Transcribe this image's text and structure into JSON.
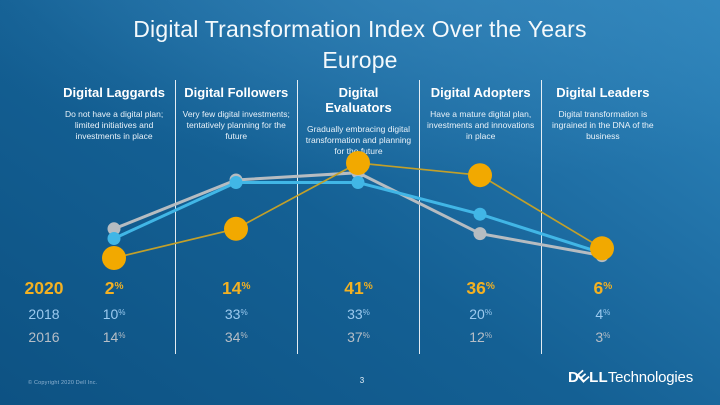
{
  "title": {
    "line1": "Digital Transformation Index Over the Years",
    "line2": "Europe"
  },
  "columns": [
    {
      "header": "Digital Laggards",
      "description": "Do not have a digital plan; limited initiatives and investments in place"
    },
    {
      "header": "Digital Followers",
      "description": "Very few digital investments; tentatively planning for the future"
    },
    {
      "header": "Digital Evaluators",
      "description": "Gradually embracing digital transformation and planning for the future"
    },
    {
      "header": "Digital Adopters",
      "description": "Have a mature digital plan, investments and innovations in place"
    },
    {
      "header": "Digital Leaders",
      "description": "Digital transformation is ingrained in the DNA of the business"
    }
  ],
  "percent_sign": "%",
  "chart_data": {
    "type": "line",
    "title": "Digital Transformation Index Over the Years — Europe",
    "categories": [
      "Digital Laggards",
      "Digital Followers",
      "Digital Evaluators",
      "Digital Adopters",
      "Digital Leaders"
    ],
    "series": [
      {
        "name": "2020",
        "values": [
          2,
          14,
          41,
          36,
          6
        ],
        "color": "#F2A900",
        "line_color": "#C2A02A"
      },
      {
        "name": "2018",
        "values": [
          10,
          33,
          33,
          20,
          4
        ],
        "color": "#41B6E6",
        "line_color": "#41B6E6"
      },
      {
        "name": "2016",
        "values": [
          14,
          34,
          37,
          12,
          3
        ],
        "color": "#B6BCC1",
        "line_color": "#B6BCC1"
      }
    ],
    "unit": "%",
    "value_labels_shown": true,
    "grid": false,
    "legend_position": "left-rows",
    "ylim": [
      0,
      45
    ]
  },
  "colors": {
    "accent_2020": "#F3B122",
    "accent_2018": "#9ccaef",
    "accent_2016": "#b7bec6",
    "background_top": "#2e86bd",
    "background_bottom": "#0d5283",
    "divider": "#ffffff"
  },
  "footer": {
    "copyright": "© Copyright 2020 Dell Inc.",
    "page_number": "3",
    "logo": {
      "d": "D",
      "e": "E",
      "ll": "LL",
      "suffix": "Technologies"
    }
  }
}
